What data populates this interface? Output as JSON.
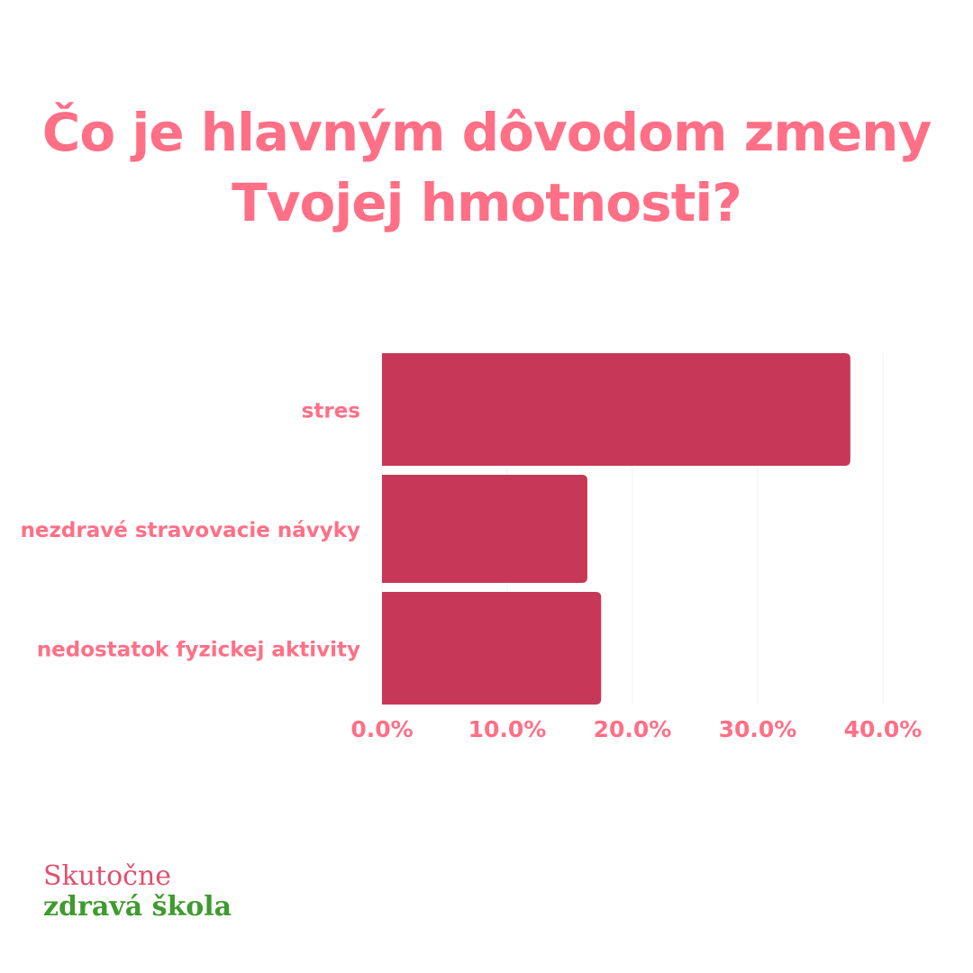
{
  "title_lines": [
    "Čo je hlavným dôvodom zmeny",
    "Tvojej hmotnosti?"
  ],
  "colors": {
    "title": "#ff6f86",
    "bar": "#c73858",
    "label": "#ff6f86",
    "grid": "#f2f2f2",
    "logo_line1": "#e0506e",
    "logo_line2": "#3f9a2f"
  },
  "logo": {
    "line1": "Skutočne",
    "line2": "zdravá škola"
  },
  "chart_data": {
    "type": "bar",
    "orientation": "horizontal",
    "categories": [
      "stres",
      "nezdravé stravovacie návyky",
      "nedostatok fyzickej aktivity"
    ],
    "values": [
      37.4,
      16.4,
      17.5
    ],
    "xlim": [
      0,
      40
    ],
    "xticks": [
      0,
      10,
      20,
      30,
      40
    ],
    "xtick_labels": [
      "0.0%",
      "10.0%",
      "20.0%",
      "30.0%",
      "40.0%"
    ],
    "grid": true,
    "legend": false
  }
}
